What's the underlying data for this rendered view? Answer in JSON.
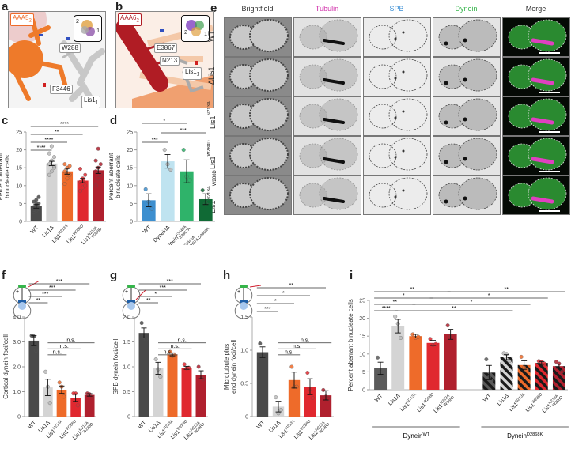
{
  "panels": {
    "a": {
      "label": "a",
      "domain_tag": "AAA5",
      "domain_sub": "2",
      "residues": [
        "W288",
        "F3446"
      ],
      "lis1_tag": "Lis1",
      "lis1_sub": "1",
      "inset_numbers": [
        "2",
        "1"
      ]
    },
    "b": {
      "label": "b",
      "domain_tag": "AAA6",
      "domain_sub": "2",
      "residues": [
        "E3867",
        "N213"
      ],
      "lis1_tag": "Lis1",
      "lis1_sub": "1",
      "inset_numbers": [
        "2",
        "1"
      ]
    },
    "e": {
      "label": "e",
      "columns": [
        {
          "name": "Brightfield",
          "color": "#333333"
        },
        {
          "name": "Tubulin",
          "color": "#d02aa8"
        },
        {
          "name": "SPB",
          "color": "#3a8fd6"
        },
        {
          "name": "Dynein",
          "color": "#35b54a"
        },
        {
          "name": "Merge",
          "color": "#333333"
        }
      ],
      "rows": [
        {
          "base": "WT",
          "sup": "",
          "sub": ""
        },
        {
          "base": "ΔLis1",
          "sup": "",
          "sub": ""
        },
        {
          "base": "Lis1",
          "sup": "N213A",
          "sub": ""
        },
        {
          "base": "Lis1",
          "sup": "W288D",
          "sub": ""
        },
        {
          "base": "Lis1",
          "sup": "N213A",
          "sub": "W288D"
        }
      ]
    },
    "c": {
      "label": "c"
    },
    "d": {
      "label": "d"
    },
    "f": {
      "label": "f"
    },
    "g": {
      "label": "g"
    },
    "h": {
      "label": "h"
    },
    "i": {
      "label": "i"
    }
  },
  "chart_data": [
    {
      "id": "c",
      "type": "bar",
      "ylabel": [
        "Percent aberrant",
        "binucleate cells"
      ],
      "ylim": [
        0,
        25
      ],
      "yticks": [
        0,
        5,
        10,
        15,
        20,
        25
      ],
      "ytick_labels": [
        "0",
        "5",
        "10",
        "15",
        "20",
        "25"
      ],
      "categories": [
        {
          "base": "WT",
          "sup": "",
          "sub": ""
        },
        {
          "base": "Lis1Δ",
          "sup": "",
          "sub": ""
        },
        {
          "base": "Lis1",
          "sup": "N213A",
          "sub": ""
        },
        {
          "base": "Lis1",
          "sup": "W288D",
          "sub": ""
        },
        {
          "base": "Lis1",
          "sup": "N213A",
          "sub": "W288D"
        }
      ],
      "values": [
        4.2,
        16.2,
        14.0,
        11.4,
        14.3
      ],
      "errors": [
        0.5,
        0.6,
        0.8,
        0.6,
        0.9
      ],
      "colors": [
        "#4a4a4a",
        "#d4d4d4",
        "#ee6b2a",
        "#e0282f",
        "#b0202e"
      ],
      "points": [
        [
          2.5,
          3,
          3.5,
          4,
          4.5,
          5,
          5.5,
          6,
          6.8,
          3.2,
          4.8
        ],
        [
          13,
          14,
          15,
          16,
          17,
          18,
          19,
          21,
          15.5
        ],
        [
          10.5,
          12,
          13,
          14,
          15,
          15.5,
          16,
          13.5
        ],
        [
          8.5,
          9.5,
          10,
          11,
          12,
          13,
          14.7,
          11.5
        ],
        [
          10,
          12,
          13,
          14,
          15,
          16,
          17,
          20.3
        ]
      ],
      "significance": [
        {
          "from": 0,
          "to": 1,
          "label": "****"
        },
        {
          "from": 0,
          "to": 2,
          "label": "****"
        },
        {
          "from": 0,
          "to": 3,
          "label": "**"
        },
        {
          "from": 0,
          "to": 4,
          "label": "****"
        }
      ]
    },
    {
      "id": "d",
      "type": "bar",
      "ylabel": [
        "Percent aberrant",
        "binucleate cells"
      ],
      "ylim": [
        0,
        25
      ],
      "yticks": [
        0,
        5,
        10,
        15,
        20,
        25
      ],
      "ytick_labels": [
        "0",
        "5",
        "10",
        "15",
        "20",
        "25"
      ],
      "categories": [
        {
          "base": "WT",
          "sup": "",
          "sub": ""
        },
        {
          "base": "DyneinΔ",
          "sup": "",
          "sub": ""
        },
        {
          "base": "Dynein",
          "sup": "F3446A",
          "sub": "E3867A"
        },
        {
          "base": "Dynein",
          "sup": "F3446A",
          "sub": "E3867A D2868K"
        }
      ],
      "values": [
        5.9,
        16.8,
        14.0,
        6.2
      ],
      "errors": [
        1.8,
        1.9,
        3.2,
        1.5
      ],
      "colors": [
        "#3d8fcf",
        "#bfe3f0",
        "#2fb36a",
        "#106a35"
      ],
      "points": [
        [
          9,
          5.5,
          3.5
        ],
        [
          20,
          16,
          14.5
        ],
        [
          20,
          12.5,
          11.5
        ],
        [
          8.7,
          5,
          5.5
        ]
      ],
      "significance": [
        {
          "from": 0,
          "to": 1,
          "label": "***"
        },
        {
          "from": 1,
          "to": 3,
          "label": "***"
        },
        {
          "from": 0,
          "to": 2,
          "label": "*"
        },
        {
          "from": 2,
          "to": 3,
          "label": "*"
        }
      ]
    },
    {
      "id": "f",
      "type": "bar",
      "ylabel": [
        "Cortical dynein foci/cell"
      ],
      "ylim": [
        0,
        4
      ],
      "yticks": [
        0,
        1,
        2,
        3,
        4
      ],
      "ytick_labels": [
        "0",
        "1.0",
        "2.0",
        "3.0",
        "4.0"
      ],
      "categories": [
        {
          "base": "WT",
          "sup": "",
          "sub": ""
        },
        {
          "base": "Lis1Δ",
          "sup": "",
          "sub": ""
        },
        {
          "base": "Lis1",
          "sup": "N213A",
          "sub": ""
        },
        {
          "base": "Lis1",
          "sup": "W288D",
          "sub": ""
        },
        {
          "base": "Lis1",
          "sup": "N213A",
          "sub": "W288D"
        }
      ],
      "values": [
        3.05,
        1.17,
        1.08,
        0.76,
        0.87
      ],
      "errors": [
        0.2,
        0.33,
        0.15,
        0.15,
        0.05
      ],
      "colors": [
        "#4a4a4a",
        "#d4d4d4",
        "#ee6b2a",
        "#e0282f",
        "#b0202e"
      ],
      "points": [
        [
          3.25,
          3.22,
          2.65
        ],
        [
          1.8,
          1.2,
          0.55
        ],
        [
          1.37,
          1.2,
          0.8
        ],
        [
          0.93,
          0.93,
          0.45
        ],
        [
          0.93,
          0.9,
          0.8
        ]
      ],
      "significance": [
        {
          "from": 0,
          "to": 1,
          "label": "**"
        },
        {
          "from": 0,
          "to": 2,
          "label": "***"
        },
        {
          "from": 0,
          "to": 3,
          "label": "***"
        },
        {
          "from": 0,
          "to": 4,
          "label": "***"
        }
      ],
      "ns": [
        {
          "from": 1,
          "to": 2,
          "label": "n.s."
        },
        {
          "from": 1,
          "to": 3,
          "label": "n.s."
        },
        {
          "from": 1,
          "to": 4,
          "label": "n.s."
        }
      ]
    },
    {
      "id": "g",
      "type": "bar",
      "ylabel": [
        "SPB dynein foci/cell"
      ],
      "ylim": [
        0,
        2
      ],
      "yticks": [
        0,
        0.5,
        1,
        1.5,
        2
      ],
      "ytick_labels": [
        "0",
        "0.5",
        "1.0",
        "1.5",
        "2.0"
      ],
      "categories": [
        {
          "base": "WT",
          "sup": "",
          "sub": ""
        },
        {
          "base": "Lis1Δ",
          "sup": "",
          "sub": ""
        },
        {
          "base": "Lis1",
          "sup": "N213A",
          "sub": ""
        },
        {
          "base": "Lis1",
          "sup": "W288D",
          "sub": ""
        },
        {
          "base": "Lis1",
          "sup": "N213A",
          "sub": "W288D"
        }
      ],
      "values": [
        1.68,
        0.97,
        1.25,
        0.98,
        0.84
      ],
      "errors": [
        0.1,
        0.12,
        0.03,
        0.03,
        0.08
      ],
      "colors": [
        "#4a4a4a",
        "#d4d4d4",
        "#ee6b2a",
        "#e0282f",
        "#b0202e"
      ],
      "points": [
        [
          1.88,
          1.6,
          1.55
        ],
        [
          1.15,
          0.95,
          0.8
        ],
        [
          1.3,
          1.22,
          1.23
        ],
        [
          1.05,
          0.97,
          0.98
        ],
        [
          1.0,
          0.8,
          0.75
        ]
      ],
      "significance": [
        {
          "from": 0,
          "to": 1,
          "label": "**"
        },
        {
          "from": 0,
          "to": 2,
          "label": "*"
        },
        {
          "from": 0,
          "to": 3,
          "label": "***"
        },
        {
          "from": 0,
          "to": 4,
          "label": "***"
        }
      ],
      "ns": [
        {
          "from": 1,
          "to": 2,
          "label": "n.s."
        },
        {
          "from": 1,
          "to": 3,
          "label": "n.s."
        },
        {
          "from": 1,
          "to": 4,
          "label": "n.s."
        }
      ]
    },
    {
      "id": "h",
      "type": "bar",
      "ylabel": [
        "Microtubule plus",
        "end dynein foci/cell"
      ],
      "ylim": [
        0,
        1.5
      ],
      "yticks": [
        0,
        0.5,
        1,
        1.5
      ],
      "ytick_labels": [
        "0",
        "0.5",
        "1.0",
        "1.5"
      ],
      "categories": [
        {
          "base": "WT",
          "sup": "",
          "sub": ""
        },
        {
          "base": "Lis1Δ",
          "sup": "",
          "sub": ""
        },
        {
          "base": "Lis1",
          "sup": "N213A",
          "sub": ""
        },
        {
          "base": "Lis1",
          "sup": "W288D",
          "sub": ""
        },
        {
          "base": "Lis1",
          "sup": "N213A",
          "sub": "W288D"
        }
      ],
      "values": [
        0.97,
        0.15,
        0.55,
        0.45,
        0.32
      ],
      "errors": [
        0.08,
        0.08,
        0.12,
        0.12,
        0.07
      ],
      "colors": [
        "#4a4a4a",
        "#d4d4d4",
        "#ee6b2a",
        "#e0282f",
        "#b0202e"
      ],
      "points": [
        [
          1.1,
          0.9,
          0.92
        ],
        [
          0.29,
          0.05,
          0.1
        ],
        [
          0.75,
          0.45,
          0.45
        ],
        [
          0.66,
          0.42,
          0.28
        ],
        [
          0.4,
          0.3,
          0.27
        ]
      ],
      "significance": [
        {
          "from": 0,
          "to": 1,
          "label": "***"
        },
        {
          "from": 0,
          "to": 2,
          "label": "*"
        },
        {
          "from": 0,
          "to": 3,
          "label": "*"
        },
        {
          "from": 0,
          "to": 4,
          "label": "**"
        }
      ],
      "ns": [
        {
          "from": 1,
          "to": 2,
          "label": "n.s."
        },
        {
          "from": 1,
          "to": 3,
          "label": "n.s."
        },
        {
          "from": 1,
          "to": 4,
          "label": "n.s."
        }
      ]
    },
    {
      "id": "i",
      "type": "bar",
      "ylabel": [
        "Percent aberrant binucleate cells"
      ],
      "ylim": [
        0,
        25
      ],
      "yticks": [
        0,
        5,
        10,
        15,
        20,
        25
      ],
      "ytick_labels": [
        "0",
        "5",
        "10",
        "15",
        "20",
        "25"
      ],
      "groups": [
        {
          "base": "Dynein",
          "sup": "WT",
          "count": 5,
          "hatched": false
        },
        {
          "base": "Dynein",
          "sup": "D2868K",
          "count": 5,
          "hatched": true
        }
      ],
      "categories": [
        {
          "base": "WT",
          "sup": "",
          "sub": ""
        },
        {
          "base": "Lis1Δ",
          "sup": "",
          "sub": ""
        },
        {
          "base": "Lis1",
          "sup": "N213A",
          "sub": ""
        },
        {
          "base": "Lis1",
          "sup": "W288D",
          "sub": ""
        },
        {
          "base": "Lis1",
          "sup": "N213A",
          "sub": "W288D"
        },
        {
          "base": "WT",
          "sup": "",
          "sub": ""
        },
        {
          "base": "Lis1Δ",
          "sup": "",
          "sub": ""
        },
        {
          "base": "Lis1",
          "sup": "N213A",
          "sub": ""
        },
        {
          "base": "Lis1",
          "sup": "W288D",
          "sub": ""
        },
        {
          "base": "Lis1",
          "sup": "N213A",
          "sub": "W288D"
        }
      ],
      "values": [
        6.0,
        17.8,
        15.0,
        13.1,
        15.5,
        4.8,
        9.1,
        6.9,
        7.5,
        6.6
      ],
      "errors": [
        1.7,
        1.9,
        0.5,
        0.7,
        1.4,
        2.0,
        0.7,
        1.2,
        0.4,
        0.6
      ],
      "colors": [
        "#5a5a5a",
        "#d4d4d4",
        "#ee6b2a",
        "#e0282f",
        "#b0202e",
        "#5a5a5a",
        "#d4d4d4",
        "#ee6b2a",
        "#e0282f",
        "#b0202e"
      ],
      "points": [
        [
          9,
          5,
          4
        ],
        [
          20.5,
          18.5,
          14.5
        ],
        [
          15.5,
          14.5,
          14.8
        ],
        [
          14.2,
          12.5,
          12.8
        ],
        [
          18,
          15,
          15
        ],
        [
          8.5,
          3.5,
          2.5
        ],
        [
          10.2,
          10,
          8
        ],
        [
          9.2,
          6.2,
          5.5
        ],
        [
          8,
          7.8,
          7.3
        ],
        [
          7.8,
          7.3,
          5
        ]
      ],
      "significance": [
        {
          "from": 0,
          "to": 1,
          "label": "****"
        },
        {
          "from": 1,
          "to": 6,
          "label": "**"
        },
        {
          "from": 0,
          "to": 2,
          "label": "**"
        },
        {
          "from": 2,
          "to": 7,
          "label": "*"
        },
        {
          "from": 0,
          "to": 3,
          "label": "*"
        },
        {
          "from": 3,
          "to": 8,
          "label": "*"
        },
        {
          "from": 0,
          "to": 4,
          "label": "**"
        },
        {
          "from": 4,
          "to": 9,
          "label": "**"
        }
      ]
    }
  ]
}
